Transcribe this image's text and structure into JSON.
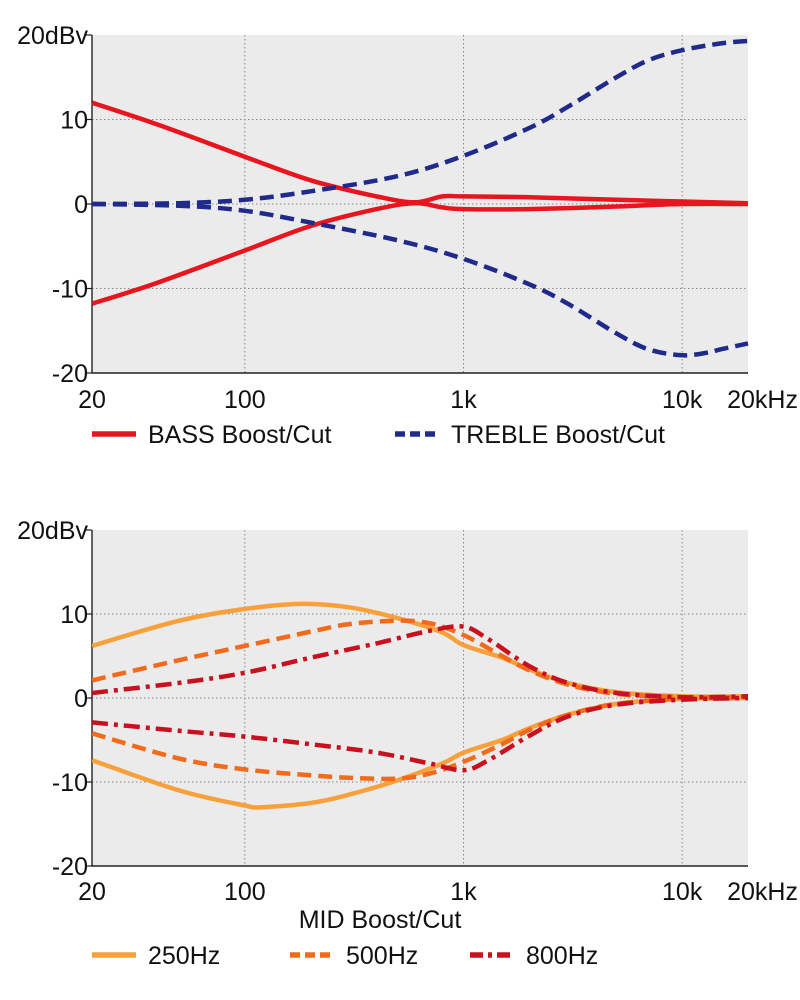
{
  "chart_data": [
    {
      "type": "line",
      "title": "",
      "xlabel": "",
      "ylabel": "",
      "xscale": "log",
      "xlim": [
        20,
        20000
      ],
      "ylim": [
        -20,
        20
      ],
      "grid": true,
      "x_ticks": [
        20,
        100,
        1000,
        10000,
        20000
      ],
      "x_tick_labels": [
        "20",
        "100",
        "1k",
        "10k",
        "20kHz"
      ],
      "y_ticks": [
        20,
        10,
        0,
        -10,
        -20
      ],
      "y_tick_labels": [
        "20dBv",
        "10",
        "0",
        "-10",
        "-20"
      ],
      "legend": [
        {
          "label": "BASS Boost/Cut",
          "color": "#e8141e",
          "style": "solid"
        },
        {
          "label": "TREBLE Boost/Cut",
          "color": "#1f2a8a",
          "style": "dashed"
        }
      ],
      "series": [
        {
          "name": "BASS Boost/Cut",
          "color": "#e8141e",
          "style": "solid",
          "x": [
            20,
            40,
            100,
            200,
            400,
            600,
            800,
            1000,
            2000,
            5000,
            10000,
            20000
          ],
          "y": [
            12,
            9.4,
            5.6,
            2.8,
            0.9,
            0.2,
            0.9,
            0.9,
            0.8,
            0.5,
            0.3,
            0.1
          ]
        },
        {
          "name": "BASS Boost/Cut",
          "color": "#e8141e",
          "style": "solid",
          "x": [
            20,
            40,
            100,
            200,
            400,
            600,
            800,
            1000,
            2000,
            5000,
            10000,
            20000
          ],
          "y": [
            -11.8,
            -9.3,
            -5.5,
            -2.6,
            -0.6,
            0.1,
            -0.4,
            -0.6,
            -0.6,
            -0.3,
            0,
            0
          ]
        },
        {
          "name": "TREBLE Boost/Cut",
          "color": "#1f2a8a",
          "style": "dashed",
          "x": [
            20,
            50,
            100,
            200,
            500,
            1000,
            2000,
            3000,
            5000,
            7000,
            10000,
            15000,
            20000
          ],
          "y": [
            0,
            0.1,
            0.5,
            1.5,
            3.3,
            5.7,
            9,
            11.5,
            15,
            17,
            18.2,
            19,
            19.3
          ]
        },
        {
          "name": "TREBLE Boost/Cut",
          "color": "#1f2a8a",
          "style": "dashed",
          "x": [
            20,
            50,
            100,
            200,
            500,
            1000,
            2000,
            3000,
            5000,
            7000,
            10000,
            13000,
            15000,
            20000
          ],
          "y": [
            0,
            -0.2,
            -0.8,
            -2.2,
            -4.3,
            -6.5,
            -9.5,
            -11.8,
            -15.3,
            -17.2,
            -17.9,
            -17.6,
            -17.2,
            -16.5
          ]
        }
      ]
    },
    {
      "type": "line",
      "title": "",
      "xlabel": "MID Boost/Cut",
      "ylabel": "",
      "xscale": "log",
      "xlim": [
        20,
        20000
      ],
      "ylim": [
        -20,
        20
      ],
      "grid": true,
      "x_ticks": [
        20,
        100,
        1000,
        10000,
        20000
      ],
      "x_tick_labels": [
        "20",
        "100",
        "1k",
        "10k",
        "20kHz"
      ],
      "y_ticks": [
        20,
        10,
        0,
        -10,
        -20
      ],
      "y_tick_labels": [
        "20dBv",
        "10",
        "0",
        "-10",
        "-20"
      ],
      "legend": [
        {
          "label": "250Hz",
          "color": "#f7a03c",
          "style": "solid"
        },
        {
          "label": "500Hz",
          "color": "#f26a1c",
          "style": "dashed"
        },
        {
          "label": "800Hz",
          "color": "#c8101e",
          "style": "dashdot"
        }
      ],
      "series": [
        {
          "name": "250Hz",
          "color": "#f7a03c",
          "style": "solid",
          "x": [
            20,
            50,
            100,
            180,
            300,
            500,
            800,
            1000,
            1500,
            2000,
            3000,
            5000,
            10000,
            20000
          ],
          "y": [
            6.2,
            9.2,
            10.6,
            11.2,
            10.8,
            9.5,
            7.8,
            6.3,
            4.8,
            3.4,
            1.8,
            0.7,
            0.2,
            0.2
          ]
        },
        {
          "name": "250Hz",
          "color": "#f7a03c",
          "style": "solid",
          "x": [
            20,
            50,
            100,
            120,
            200,
            300,
            500,
            800,
            1000,
            1500,
            2000,
            3000,
            5000,
            10000,
            20000
          ],
          "y": [
            -7.4,
            -11,
            -12.8,
            -13,
            -12.5,
            -11.5,
            -9.8,
            -7.8,
            -6.5,
            -5,
            -3.6,
            -2,
            -0.7,
            -0.1,
            0
          ]
        },
        {
          "name": "500Hz",
          "color": "#f26a1c",
          "style": "dashed",
          "x": [
            20,
            50,
            100,
            200,
            300,
            500,
            700,
            1000,
            1500,
            2000,
            3000,
            5000,
            10000,
            20000
          ],
          "y": [
            2.1,
            4.5,
            6.2,
            7.9,
            8.8,
            9.2,
            8.9,
            7.5,
            5,
            3.3,
            1.6,
            0.5,
            0.1,
            0.1
          ]
        },
        {
          "name": "500Hz",
          "color": "#f26a1c",
          "style": "dashed",
          "x": [
            20,
            50,
            100,
            200,
            300,
            500,
            700,
            1000,
            1500,
            2000,
            3000,
            5000,
            10000,
            20000
          ],
          "y": [
            -4.2,
            -7.2,
            -8.5,
            -9.2,
            -9.5,
            -9.6,
            -9,
            -7.6,
            -5.5,
            -3.8,
            -2,
            -0.7,
            -0.1,
            0
          ]
        },
        {
          "name": "800Hz",
          "color": "#c8101e",
          "style": "dashdot",
          "x": [
            20,
            50,
            100,
            200,
            400,
            700,
            1000,
            1300,
            2000,
            3000,
            5000,
            10000,
            20000
          ],
          "y": [
            0.6,
            1.8,
            3,
            4.8,
            6.5,
            8,
            8.5,
            7,
            3.8,
            1.8,
            0.6,
            0.1,
            0.2
          ]
        },
        {
          "name": "800Hz",
          "color": "#c8101e",
          "style": "dashdot",
          "x": [
            20,
            50,
            100,
            200,
            400,
            700,
            1000,
            1300,
            2000,
            3000,
            5000,
            10000,
            20000
          ],
          "y": [
            -2.9,
            -3.9,
            -4.6,
            -5.5,
            -6.5,
            -7.8,
            -8.6,
            -7.4,
            -4.5,
            -2.2,
            -0.8,
            -0.2,
            0
          ]
        }
      ]
    }
  ]
}
